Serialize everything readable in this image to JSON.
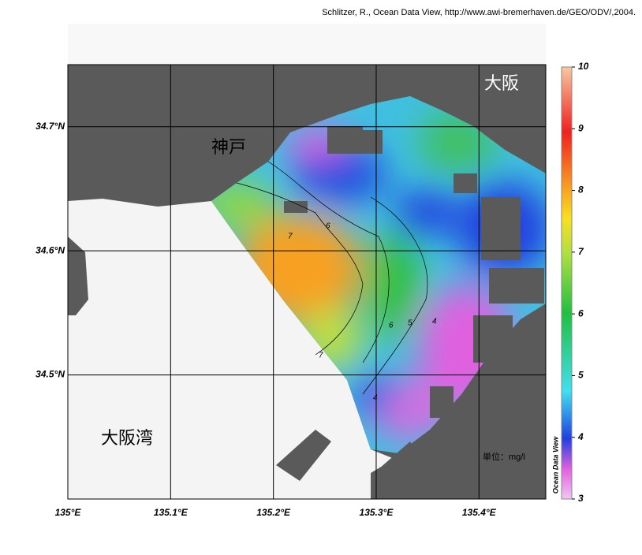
{
  "credit": "Schlitzer, R., Ocean Data View, http://www.awi-bremerhaven.de/GEO/ODV/,2004.",
  "map": {
    "xlim": [
      135,
      135.465
    ],
    "ylim": [
      34.4,
      34.75
    ],
    "xticks": [
      {
        "value": 135,
        "label": "135°E"
      },
      {
        "value": 135.1,
        "label": "135.1°E"
      },
      {
        "value": 135.2,
        "label": "135.2°E"
      },
      {
        "value": 135.3,
        "label": "135.3°E"
      },
      {
        "value": 135.4,
        "label": "135.4°E"
      }
    ],
    "yticks": [
      {
        "value": 34.5,
        "label": "34.5°N"
      },
      {
        "value": 34.6,
        "label": "34.6°N"
      },
      {
        "value": 34.7,
        "label": "34.7°N"
      }
    ],
    "place_names": [
      "大阪",
      "神戸",
      "大阪湾"
    ],
    "unit": "単位：mg/l",
    "contour_labels": [
      6,
      7,
      6,
      5,
      4,
      4,
      7
    ]
  },
  "colorbar": {
    "lim": [
      3,
      10
    ],
    "ticks": [
      3,
      4,
      5,
      6,
      7,
      8,
      9,
      10
    ],
    "label": "Ocean Data View"
  }
}
